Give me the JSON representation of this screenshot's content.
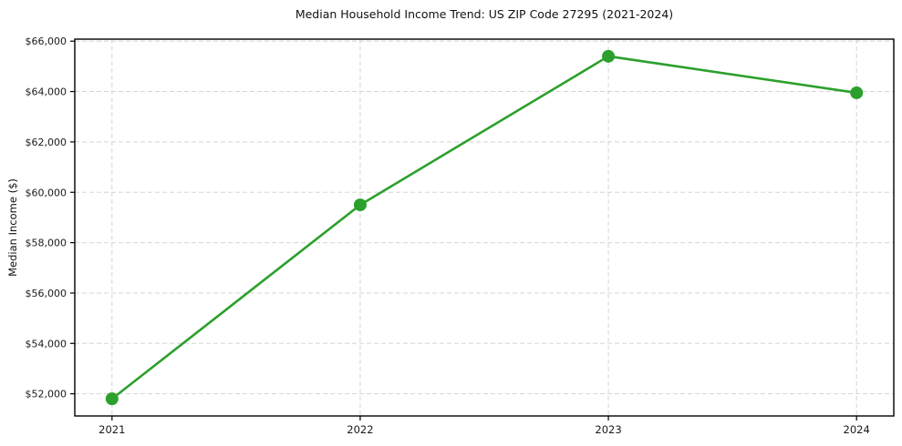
{
  "chart_data": {
    "type": "line",
    "title": "Median Household Income Trend: US ZIP Code 27295 (2021-2024)",
    "xlabel": "",
    "ylabel": "Median Income ($)",
    "categories": [
      "2021",
      "2022",
      "2023",
      "2024"
    ],
    "x": [
      2021,
      2022,
      2023,
      2024
    ],
    "series": [
      {
        "name": "Median Household Income",
        "values": [
          51800,
          59500,
          65400,
          63950
        ],
        "color": "#2ca02c",
        "marker": "circle",
        "marker_radius": 7,
        "line_width": 2.6
      }
    ],
    "xlim": [
      2020.85,
      2024.15
    ],
    "ylim": [
      51120,
      66080
    ],
    "xticks": {
      "values": [
        2021,
        2022,
        2023,
        2024
      ],
      "labels": [
        "2021",
        "2022",
        "2023",
        "2024"
      ]
    },
    "yticks": {
      "values": [
        52000,
        54000,
        56000,
        58000,
        60000,
        62000,
        64000,
        66000
      ],
      "labels": [
        "$52,000",
        "$54,000",
        "$56,000",
        "$58,000",
        "$60,000",
        "$62,000",
        "$64,000",
        "$66,000"
      ]
    },
    "grid": {
      "visible": true,
      "style": "dashed",
      "color": "#d5d5d5"
    },
    "legend": {
      "visible": false,
      "position": "none"
    },
    "axis_color": "#000000",
    "tick_label_color": "#1a1a1a",
    "background": "#ffffff"
  }
}
